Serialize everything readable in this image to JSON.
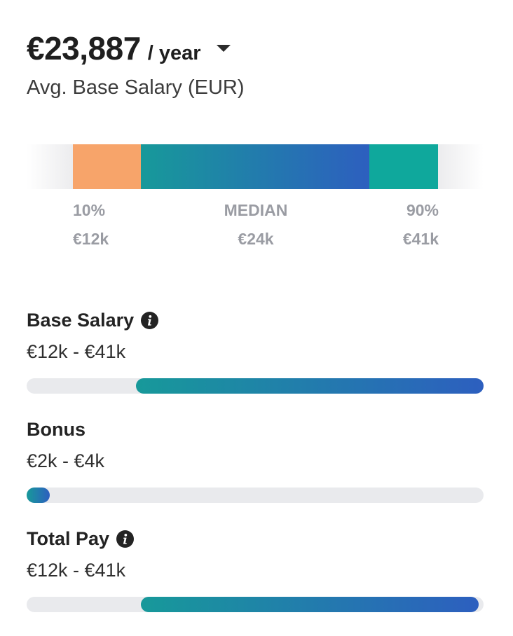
{
  "summary": {
    "amount": "€23,887",
    "period": "/ year",
    "subtitle": "Avg. Base Salary (EUR)"
  },
  "distribution": {
    "p10_label": "10%",
    "p10_value": "€12k",
    "median_label": "MEDIAN",
    "median_value": "€24k",
    "p90_label": "90%",
    "p90_value": "€41k"
  },
  "colors": {
    "low_segment": "#f7a46a",
    "mid_gradient_start": "#17999a",
    "mid_gradient_end": "#2d5fbf",
    "high_segment": "#0fa89c",
    "track": "#e9eaed"
  },
  "pay_breakdown": [
    {
      "title": "Base Salary",
      "range": "€12k - €41k",
      "info": true,
      "fill_start": 0.24,
      "fill_end": 1.0
    },
    {
      "title": "Bonus",
      "range": "€2k - €4k",
      "info": false,
      "fill_start": 0.0,
      "fill_end": 0.05
    },
    {
      "title": "Total Pay",
      "range": "€12k - €41k",
      "info": true,
      "fill_start": 0.25,
      "fill_end": 0.99
    }
  ]
}
